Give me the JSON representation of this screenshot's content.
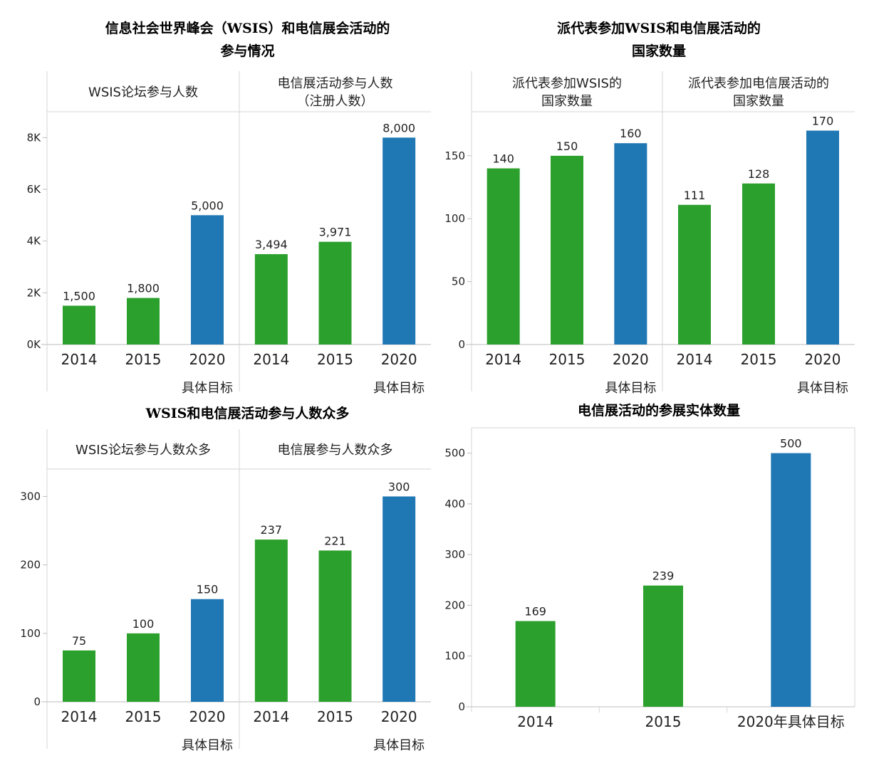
{
  "colors": {
    "actual": "#2ca02c",
    "target": "#1f77b4"
  },
  "chart_data": [
    {
      "type": "bar",
      "title_lines": [
        "信息社会世界峰会（WSIS）和电信展会活动的",
        "参与情况"
      ],
      "ylim": [
        0,
        9000
      ],
      "yticks": [
        0,
        2000,
        4000,
        6000,
        8000
      ],
      "ytick_labels": [
        "0K",
        "2K",
        "4K",
        "6K",
        "8K"
      ],
      "panels": [
        {
          "header_lines": [
            "WSIS论坛参与人数"
          ],
          "categories": [
            "2014",
            "2015",
            "2020"
          ],
          "values": [
            1500,
            1800,
            5000
          ],
          "value_labels": [
            "1,500",
            "1,800",
            "5,000"
          ],
          "target_flags": [
            false,
            false,
            true
          ],
          "footnote": "具体目标"
        },
        {
          "header_lines": [
            "电信展活动参与人数",
            "（注册人数）"
          ],
          "categories": [
            "2014",
            "2015",
            "2020"
          ],
          "values": [
            3494,
            3971,
            8000
          ],
          "value_labels": [
            "3,494",
            "3,971",
            "8,000"
          ],
          "target_flags": [
            false,
            false,
            true
          ],
          "footnote": "具体目标"
        }
      ]
    },
    {
      "type": "bar",
      "title_lines": [
        "派代表参加WSIS和电信展活动的",
        "国家数量"
      ],
      "ylim": [
        0,
        185
      ],
      "yticks": [
        0,
        50,
        100,
        150
      ],
      "ytick_labels": [
        "0",
        "50",
        "100",
        "150"
      ],
      "panels": [
        {
          "header_lines": [
            "派代表参加WSIS的",
            "国家数量"
          ],
          "categories": [
            "2014",
            "2015",
            "2020"
          ],
          "values": [
            140,
            150,
            160
          ],
          "value_labels": [
            "140",
            "150",
            "160"
          ],
          "target_flags": [
            false,
            false,
            true
          ],
          "footnote": "具体目标"
        },
        {
          "header_lines": [
            "派代表参加电信展活动的",
            "国家数量"
          ],
          "categories": [
            "2014",
            "2015",
            "2020"
          ],
          "values": [
            111,
            128,
            170
          ],
          "value_labels": [
            "111",
            "128",
            "170"
          ],
          "target_flags": [
            false,
            false,
            true
          ],
          "footnote": "具体目标"
        }
      ]
    },
    {
      "type": "bar",
      "title_lines": [
        "WSIS和电信展活动参与人数众多"
      ],
      "ylim": [
        0,
        340
      ],
      "yticks": [
        0,
        100,
        200,
        300
      ],
      "ytick_labels": [
        "0",
        "100",
        "200",
        "300"
      ],
      "panels": [
        {
          "header_lines": [
            "WSIS论坛参与人数众多"
          ],
          "categories": [
            "2014",
            "2015",
            "2020"
          ],
          "values": [
            75,
            100,
            150
          ],
          "value_labels": [
            "75",
            "100",
            "150"
          ],
          "target_flags": [
            false,
            false,
            true
          ],
          "footnote": "具体目标"
        },
        {
          "header_lines": [
            "电信展参与人数众多"
          ],
          "categories": [
            "2014",
            "2015",
            "2020"
          ],
          "values": [
            237,
            221,
            300
          ],
          "value_labels": [
            "237",
            "221",
            "300"
          ],
          "target_flags": [
            false,
            false,
            true
          ],
          "footnote": "具体目标"
        }
      ]
    },
    {
      "type": "bar",
      "title_lines": [
        "电信展活动的参展实体数量"
      ],
      "ylim": [
        0,
        550
      ],
      "yticks": [
        0,
        100,
        200,
        300,
        400,
        500
      ],
      "ytick_labels": [
        "0",
        "100",
        "200",
        "300",
        "400",
        "500"
      ],
      "panels": [
        {
          "header_lines": [],
          "categories": [
            "2014",
            "2015",
            "2020年具体目标"
          ],
          "values": [
            169,
            239,
            500
          ],
          "value_labels": [
            "169",
            "239",
            "500"
          ],
          "target_flags": [
            false,
            false,
            true
          ],
          "footnote": ""
        }
      ]
    }
  ]
}
